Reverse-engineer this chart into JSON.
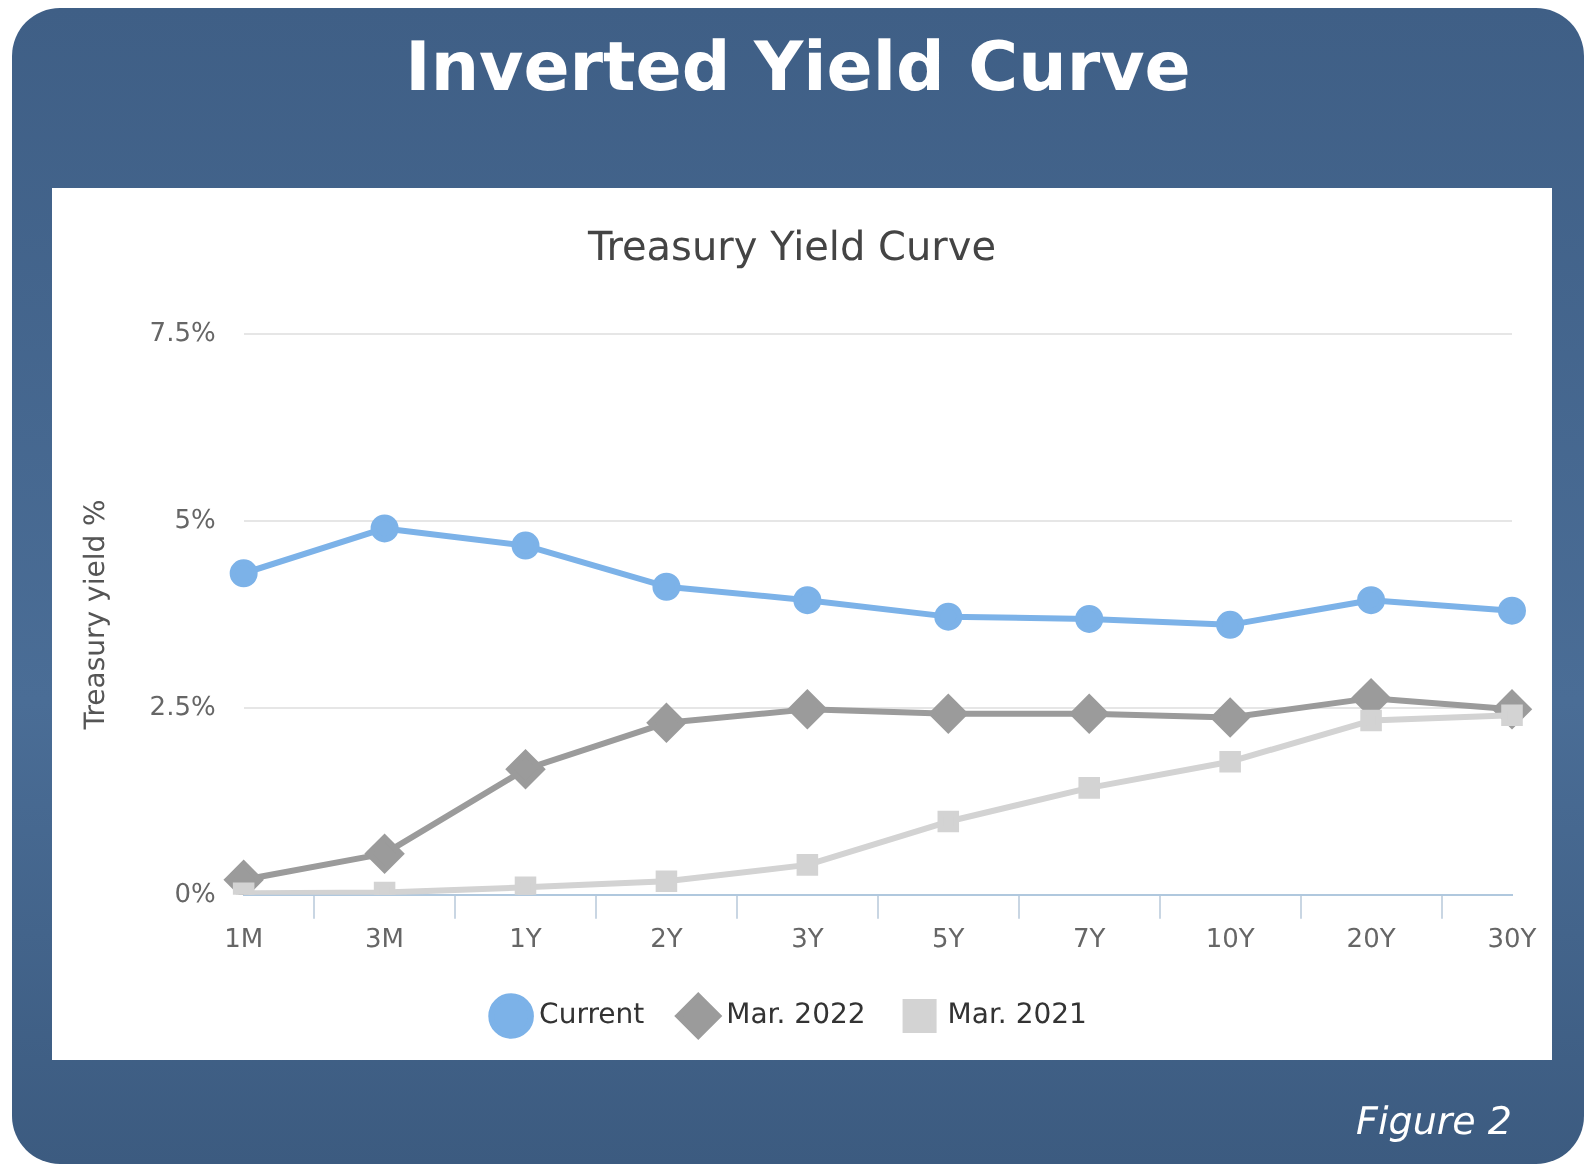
{
  "chart_data": {
    "type": "line",
    "title": "Inverted Yield Curve",
    "subtitle": "Treasury Yield Curve",
    "ylabel": "Treasury yield %",
    "categories": [
      "1M",
      "3M",
      "1Y",
      "2Y",
      "3Y",
      "5Y",
      "7Y",
      "10Y",
      "20Y",
      "30Y"
    ],
    "series": [
      {
        "name": "Current",
        "color": "#7cb2e8",
        "marker": "circle",
        "values": [
          4.3,
          4.9,
          4.67,
          4.12,
          3.94,
          3.72,
          3.69,
          3.61,
          3.94,
          3.8
        ]
      },
      {
        "name": "Mar. 2022",
        "color": "#9b9b9b",
        "marker": "diamond",
        "values": [
          0.2,
          0.55,
          1.68,
          2.3,
          2.48,
          2.42,
          2.42,
          2.37,
          2.63,
          2.48
        ]
      },
      {
        "name": "Mar. 2021",
        "color": "#d3d3d3",
        "marker": "square",
        "values": [
          0.02,
          0.03,
          0.1,
          0.18,
          0.4,
          0.98,
          1.43,
          1.78,
          2.33,
          2.4
        ]
      }
    ],
    "ylim": [
      0,
      7.5
    ],
    "yticks": [
      {
        "value": 0,
        "label": "0%"
      },
      {
        "value": 2.5,
        "label": "2.5%"
      },
      {
        "value": 5,
        "label": "5%"
      },
      {
        "value": 7.5,
        "label": "7.5%"
      }
    ],
    "grid": "y",
    "legend": "bottom",
    "annotations": [
      "Figure 2"
    ]
  }
}
